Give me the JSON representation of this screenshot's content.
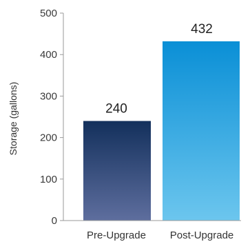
{
  "chart_data": {
    "type": "bar",
    "categories": [
      "Pre-Upgrade",
      "Post-Upgrade"
    ],
    "values": [
      240,
      432
    ],
    "data_labels": [
      "240",
      "432"
    ],
    "title": "",
    "xlabel": "",
    "ylabel": "Storage (gallons)",
    "ylim": [
      0,
      500
    ],
    "yticks": [
      0,
      100,
      200,
      300,
      400,
      500
    ],
    "ytick_labels": [
      "0",
      "100",
      "200",
      "300",
      "400",
      "500"
    ],
    "grid": false,
    "legend": "none",
    "bar_colors": [
      {
        "top": "#13305c",
        "bottom": "#5e6e9e"
      },
      {
        "top": "#0a8fd6",
        "bottom": "#6cc6ee"
      }
    ]
  }
}
